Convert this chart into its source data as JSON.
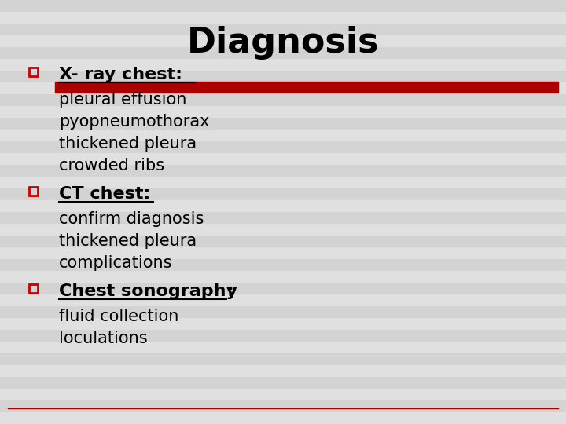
{
  "title": "Diagnosis",
  "title_fontsize": 32,
  "title_fontweight": "bold",
  "background_color": "#e0e0e0",
  "line_stripe_color": "#c8c8c8",
  "text_color": "#000000",
  "bullet_color": "#cc0000",
  "dark_red": "#aa0000",
  "bullet_char": "□",
  "sections": [
    {
      "header": "X- ray chest:",
      "has_red_bar": true,
      "items": [
        "pleural effusion",
        "pyopneumothorax",
        "thickened pleura",
        "crowded ribs"
      ]
    },
    {
      "header": "CT chest:",
      "has_red_bar": false,
      "items": [
        "confirm diagnosis",
        "thickened pleura",
        "complications"
      ]
    },
    {
      "header": "Chest sonography",
      "header_suffix": ":",
      "has_red_bar": false,
      "items": [
        "fluid collection",
        "loculations"
      ]
    }
  ],
  "header_fontsize": 16,
  "item_fontsize": 15,
  "bullet_fontsize": 14,
  "num_stripes": 36
}
